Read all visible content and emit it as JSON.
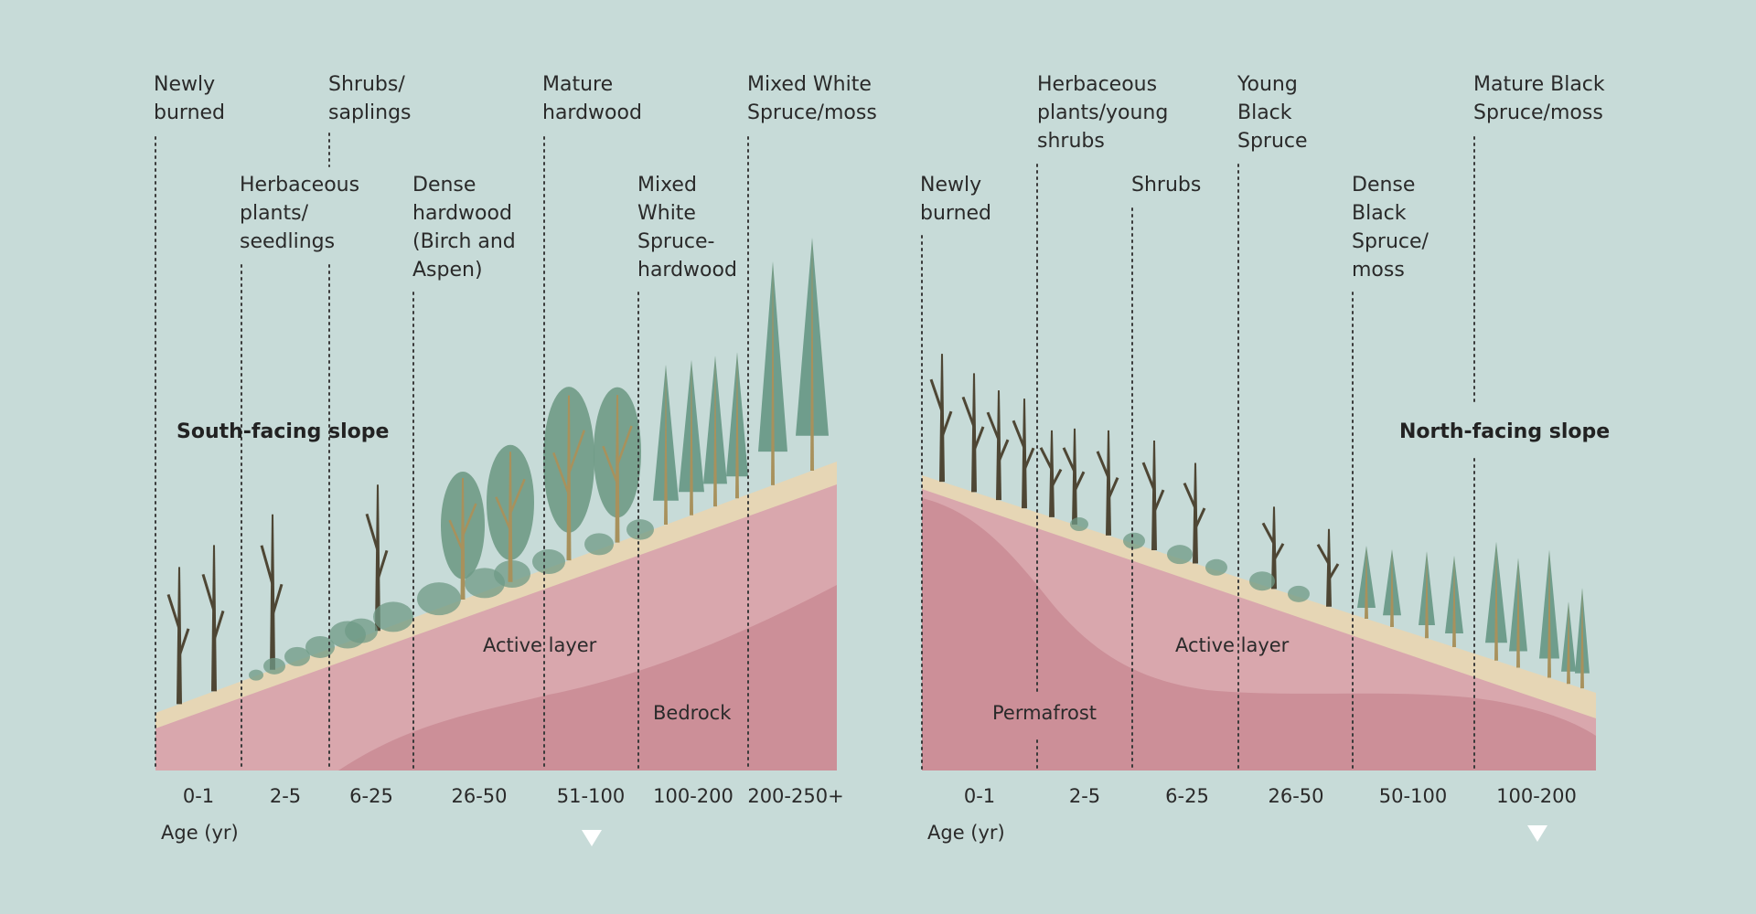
{
  "south": {
    "title": "South-facing slope",
    "active_layer": "Active layer",
    "bedrock": "Bedrock",
    "age_axis_label": "Age (yr)",
    "stages": [
      {
        "lines": [
          "Newly",
          "burned"
        ],
        "age": "0-1"
      },
      {
        "lines": [
          "Herbaceous",
          "plants/",
          "seedlings"
        ],
        "age": "2-5"
      },
      {
        "lines": [
          "Shrubs/",
          "saplings"
        ],
        "age": "6-25"
      },
      {
        "lines": [
          "Dense",
          "hardwood",
          "(Birch and",
          "Aspen)"
        ],
        "age": "26-50"
      },
      {
        "lines": [
          "Mature",
          "hardwood"
        ],
        "age": "51-100"
      },
      {
        "lines": [
          "Mixed",
          "White",
          "Spruce-",
          "hardwood"
        ],
        "age": "100-200"
      },
      {
        "lines": [
          "Mixed White",
          "Spruce/moss"
        ],
        "age": "200-250+"
      }
    ]
  },
  "north": {
    "title": "North-facing slope",
    "active_layer": "Active layer",
    "permafrost": "Permafrost",
    "age_axis_label": "Age (yr)",
    "stages": [
      {
        "lines": [
          "Newly",
          "burned"
        ],
        "age": "0-1"
      },
      {
        "lines": [
          "Herbaceous",
          "plants/young",
          "shrubs"
        ],
        "age": "2-5"
      },
      {
        "lines": [
          "Shrubs"
        ],
        "age": "6-25"
      },
      {
        "lines": [
          "Young",
          "Black",
          "Spruce"
        ],
        "age": "26-50"
      },
      {
        "lines": [
          "Dense",
          "Black",
          "Spruce/",
          "moss"
        ],
        "age": "50-100"
      },
      {
        "lines": [
          "Mature Black",
          "Spruce/moss"
        ],
        "age": "100-200"
      }
    ]
  },
  "colors": {
    "background": "#c7dbd8",
    "soil": "#d9a7ad",
    "soil_deep": "#cc8f98",
    "topsoil": "#e6d6b5",
    "dead_tree": "#4e4634",
    "hardwood_foliage": "#6f9a86",
    "spruce_foliage": "#6f9d8c",
    "trunk": "#a8915c"
  }
}
